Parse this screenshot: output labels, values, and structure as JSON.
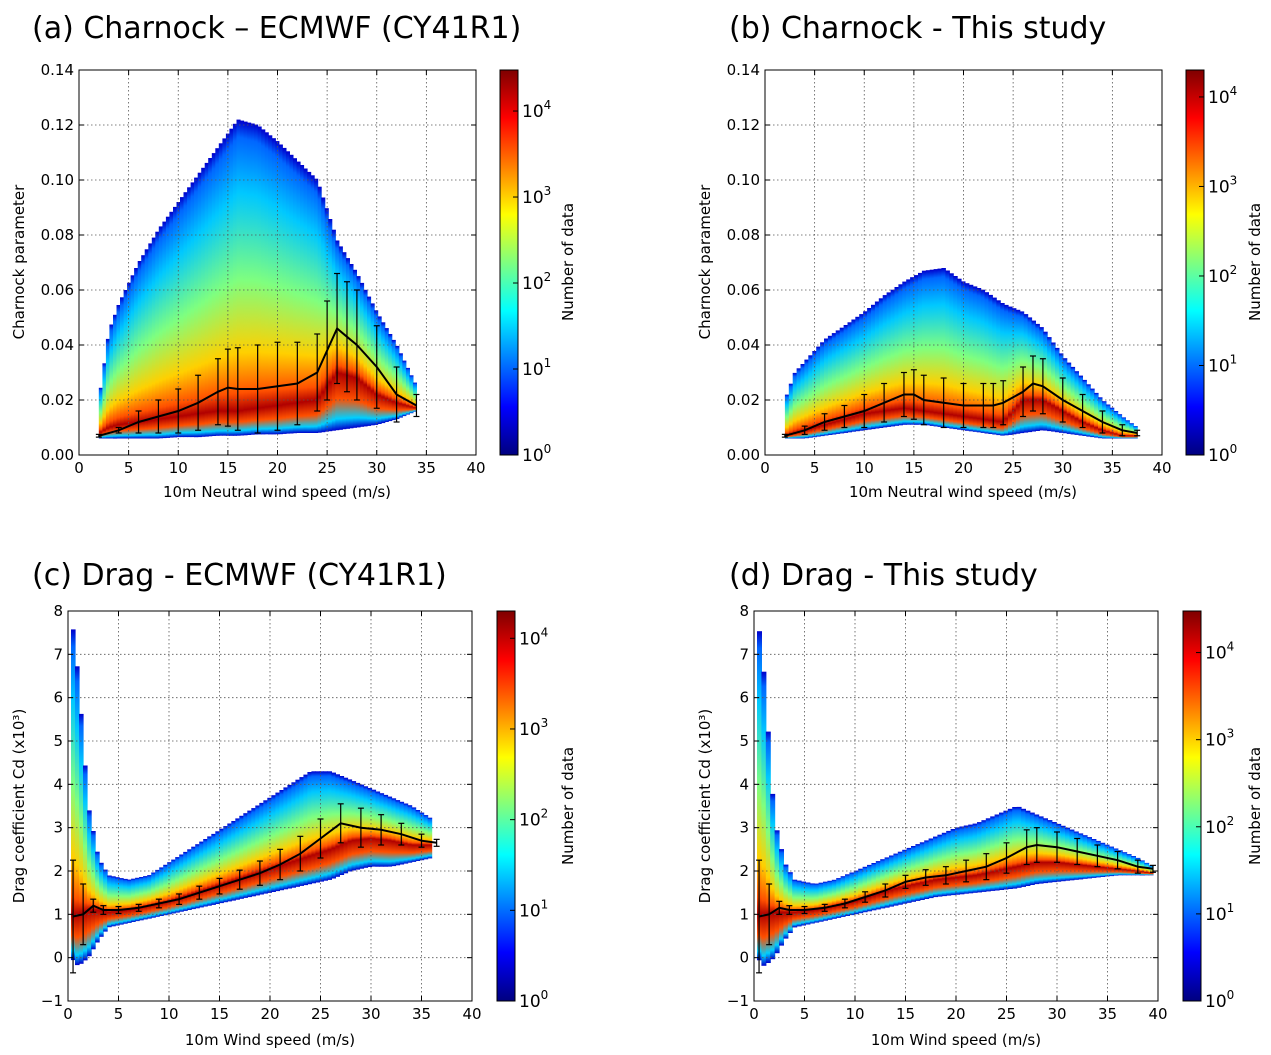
{
  "figure": {
    "colorbar_label": "Number of data"
  },
  "colormap": [
    "#00007f",
    "#0000ff",
    "#007fff",
    "#00ffff",
    "#7fff7f",
    "#ffff00",
    "#ff7f00",
    "#ff0000",
    "#7f0000"
  ],
  "chart_data": [
    {
      "id": "a",
      "type": "heatmap",
      "title": "(a) Charnock – ECMWF (CY41R1)",
      "xlabel": "10m Neutral wind speed (m/s)",
      "ylabel": "Charnock parameter",
      "xlim": [
        0,
        40
      ],
      "ylim": [
        0,
        0.14
      ],
      "xticks": [
        0,
        5,
        10,
        15,
        20,
        25,
        30,
        35,
        40
      ],
      "yticks": [
        0.0,
        0.02,
        0.04,
        0.06,
        0.08,
        0.1,
        0.12,
        0.14
      ],
      "ytick_labels": [
        "0.00",
        "0.02",
        "0.04",
        "0.06",
        "0.08",
        "0.10",
        "0.12",
        "0.14"
      ],
      "grid": true,
      "colorbar": {
        "scale": "log",
        "ticks": [
          "10^0",
          "10^1",
          "10^2",
          "10^3",
          "10^4"
        ],
        "max": 30000
      },
      "envelope": {
        "x": [
          2,
          3,
          4,
          6,
          8,
          10,
          12,
          14,
          16,
          18,
          20,
          22,
          24,
          26,
          28,
          30,
          32,
          34
        ],
        "upper": [
          0.02,
          0.045,
          0.055,
          0.07,
          0.082,
          0.092,
          0.102,
          0.112,
          0.122,
          0.12,
          0.114,
          0.107,
          0.1,
          0.078,
          0.066,
          0.052,
          0.04,
          0.025
        ],
        "lower": [
          0.006,
          0.006,
          0.006,
          0.006,
          0.006,
          0.0065,
          0.0065,
          0.007,
          0.007,
          0.0075,
          0.0075,
          0.008,
          0.008,
          0.009,
          0.01,
          0.011,
          0.013,
          0.016
        ],
        "ridge": [
          0.008,
          0.01,
          0.011,
          0.012,
          0.013,
          0.014,
          0.015,
          0.016,
          0.016,
          0.017,
          0.018,
          0.019,
          0.02,
          0.03,
          0.028,
          0.022,
          0.019,
          0.017
        ]
      },
      "mean_curve": {
        "x": [
          2,
          4,
          6,
          8,
          10,
          12,
          14,
          15,
          16,
          18,
          20,
          22,
          24,
          25,
          26,
          27,
          28,
          30,
          32,
          34
        ],
        "y": [
          0.007,
          0.009,
          0.012,
          0.014,
          0.016,
          0.019,
          0.023,
          0.0245,
          0.024,
          0.024,
          0.025,
          0.026,
          0.03,
          0.038,
          0.046,
          0.043,
          0.04,
          0.032,
          0.022,
          0.018
        ],
        "err": [
          0.0005,
          0.001,
          0.004,
          0.006,
          0.008,
          0.01,
          0.012,
          0.014,
          0.015,
          0.016,
          0.016,
          0.015,
          0.014,
          0.018,
          0.02,
          0.02,
          0.02,
          0.015,
          0.01,
          0.004
        ]
      }
    },
    {
      "id": "b",
      "type": "heatmap",
      "title": "(b) Charnock - This study",
      "xlabel": "10m Neutral wind speed (m/s)",
      "ylabel": "Charnock parameter",
      "xlim": [
        0,
        40
      ],
      "ylim": [
        0,
        0.14
      ],
      "xticks": [
        0,
        5,
        10,
        15,
        20,
        25,
        30,
        35,
        40
      ],
      "yticks": [
        0.0,
        0.02,
        0.04,
        0.06,
        0.08,
        0.1,
        0.12,
        0.14
      ],
      "ytick_labels": [
        "0.00",
        "0.02",
        "0.04",
        "0.06",
        "0.08",
        "0.10",
        "0.12",
        "0.14"
      ],
      "grid": true,
      "colorbar": {
        "scale": "log",
        "ticks": [
          "10^0",
          "10^1",
          "10^2",
          "10^3",
          "10^4"
        ],
        "max": 20000
      },
      "envelope": {
        "x": [
          2,
          3,
          4,
          6,
          8,
          10,
          12,
          14,
          16,
          18,
          20,
          22,
          24,
          26,
          28,
          30,
          32,
          34,
          36,
          37.5
        ],
        "upper": [
          0.02,
          0.03,
          0.034,
          0.042,
          0.047,
          0.052,
          0.058,
          0.063,
          0.067,
          0.068,
          0.063,
          0.06,
          0.055,
          0.052,
          0.046,
          0.036,
          0.028,
          0.02,
          0.014,
          0.01
        ],
        "lower": [
          0.006,
          0.006,
          0.006,
          0.007,
          0.008,
          0.009,
          0.01,
          0.011,
          0.011,
          0.01,
          0.009,
          0.008,
          0.007,
          0.008,
          0.009,
          0.008,
          0.007,
          0.006,
          0.006,
          0.006
        ],
        "ridge": [
          0.007,
          0.008,
          0.009,
          0.011,
          0.013,
          0.015,
          0.016,
          0.017,
          0.016,
          0.015,
          0.014,
          0.013,
          0.012,
          0.02,
          0.02,
          0.016,
          0.012,
          0.009,
          0.007,
          0.007
        ]
      },
      "mean_curve": {
        "x": [
          2,
          4,
          6,
          8,
          10,
          12,
          14,
          15,
          16,
          18,
          20,
          22,
          23,
          24,
          26,
          27,
          28,
          30,
          32,
          34,
          36,
          37.5
        ],
        "y": [
          0.007,
          0.009,
          0.012,
          0.014,
          0.016,
          0.019,
          0.022,
          0.022,
          0.02,
          0.019,
          0.018,
          0.018,
          0.018,
          0.019,
          0.023,
          0.026,
          0.025,
          0.02,
          0.016,
          0.012,
          0.009,
          0.008
        ],
        "err": [
          0.0005,
          0.0015,
          0.003,
          0.004,
          0.006,
          0.007,
          0.008,
          0.009,
          0.009,
          0.009,
          0.008,
          0.008,
          0.008,
          0.008,
          0.009,
          0.01,
          0.01,
          0.008,
          0.006,
          0.004,
          0.002,
          0.001
        ]
      }
    },
    {
      "id": "c",
      "type": "heatmap",
      "title": "(c) Drag  - ECMWF (CY41R1)",
      "xlabel": "10m Wind speed (m/s)",
      "ylabel": "Drag coefficient Cd (x10³)",
      "xlim": [
        0,
        40
      ],
      "ylim": [
        -1,
        8
      ],
      "xticks": [
        0,
        5,
        10,
        15,
        20,
        25,
        30,
        35,
        40
      ],
      "yticks": [
        -1,
        0,
        1,
        2,
        3,
        4,
        5,
        6,
        7,
        8
      ],
      "ytick_labels": [
        "−1",
        "0",
        "1",
        "2",
        "3",
        "4",
        "5",
        "6",
        "7",
        "8"
      ],
      "grid": true,
      "colorbar": {
        "scale": "log",
        "ticks": [
          "10^0",
          "10^1",
          "10^2",
          "10^3",
          "10^4"
        ],
        "max": 20000
      },
      "envelope": {
        "x": [
          0.3,
          1,
          2,
          3,
          4,
          6,
          8,
          10,
          12,
          14,
          16,
          18,
          20,
          22,
          24,
          26,
          28,
          30,
          32,
          34,
          36
        ],
        "upper": [
          8,
          6.5,
          3.5,
          2.3,
          1.9,
          1.8,
          1.9,
          2.2,
          2.5,
          2.8,
          3.1,
          3.4,
          3.7,
          4.0,
          4.3,
          4.3,
          4.1,
          3.9,
          3.7,
          3.5,
          3.2
        ],
        "lower": [
          0,
          -0.2,
          0.0,
          0.4,
          0.7,
          0.8,
          0.9,
          1.0,
          1.1,
          1.2,
          1.3,
          1.4,
          1.5,
          1.6,
          1.7,
          1.8,
          2.0,
          2.1,
          2.1,
          2.2,
          2.3
        ],
        "ridge": [
          1.0,
          1.0,
          1.1,
          1.1,
          1.05,
          1.1,
          1.2,
          1.3,
          1.45,
          1.6,
          1.75,
          1.9,
          2.05,
          2.2,
          2.35,
          2.5,
          2.7,
          2.75,
          2.7,
          2.6,
          2.6
        ]
      },
      "mean_curve": {
        "x": [
          0.5,
          1.5,
          2.5,
          3.5,
          5,
          7,
          9,
          11,
          13,
          15,
          17,
          19,
          21,
          23,
          25,
          27,
          29,
          31,
          33,
          35,
          36.5
        ],
        "y": [
          0.95,
          1.0,
          1.2,
          1.1,
          1.1,
          1.15,
          1.25,
          1.35,
          1.5,
          1.65,
          1.8,
          1.95,
          2.15,
          2.4,
          2.75,
          3.1,
          3.0,
          2.95,
          2.85,
          2.7,
          2.65
        ],
        "err": [
          1.3,
          0.7,
          0.15,
          0.1,
          0.08,
          0.08,
          0.1,
          0.12,
          0.15,
          0.18,
          0.22,
          0.28,
          0.35,
          0.4,
          0.45,
          0.45,
          0.45,
          0.35,
          0.25,
          0.15,
          0.08
        ]
      }
    },
    {
      "id": "d",
      "type": "heatmap",
      "title": "(d) Drag  - This study",
      "xlabel": "10m Wind speed (m/s)",
      "ylabel": "Drag coefficient Cd (x10³)",
      "xlim": [
        0,
        40
      ],
      "ylim": [
        -1,
        8
      ],
      "xticks": [
        0,
        5,
        10,
        15,
        20,
        25,
        30,
        35,
        40
      ],
      "yticks": [
        -1,
        0,
        1,
        2,
        3,
        4,
        5,
        6,
        7,
        8
      ],
      "ytick_labels": [
        "−1",
        "0",
        "1",
        "2",
        "3",
        "4",
        "5",
        "6",
        "7",
        "8"
      ],
      "grid": true,
      "colorbar": {
        "scale": "log",
        "ticks": [
          "10^0",
          "10^1",
          "10^2",
          "10^3",
          "10^4"
        ],
        "max": 30000
      },
      "envelope": {
        "x": [
          0.3,
          1,
          2,
          3,
          4,
          6,
          8,
          10,
          12,
          14,
          16,
          18,
          20,
          22,
          24,
          26,
          28,
          30,
          32,
          34,
          36,
          38,
          39.5
        ],
        "upper": [
          8,
          6.5,
          3.2,
          2.2,
          1.8,
          1.7,
          1.8,
          2.0,
          2.2,
          2.4,
          2.6,
          2.8,
          3.0,
          3.1,
          3.3,
          3.5,
          3.3,
          3.1,
          2.9,
          2.7,
          2.5,
          2.3,
          2.1
        ],
        "lower": [
          0,
          -0.2,
          0.0,
          0.4,
          0.7,
          0.8,
          0.9,
          1.0,
          1.1,
          1.2,
          1.3,
          1.4,
          1.45,
          1.5,
          1.55,
          1.6,
          1.7,
          1.75,
          1.8,
          1.85,
          1.9,
          1.9,
          1.9
        ],
        "ridge": [
          1.0,
          1.0,
          1.05,
          1.05,
          1.05,
          1.1,
          1.2,
          1.3,
          1.45,
          1.6,
          1.7,
          1.8,
          1.85,
          1.9,
          2.0,
          2.1,
          2.2,
          2.2,
          2.15,
          2.1,
          2.05,
          2.0,
          1.95
        ]
      },
      "mean_curve": {
        "x": [
          0.5,
          1.5,
          2.5,
          3.5,
          5,
          7,
          9,
          11,
          13,
          15,
          17,
          19,
          21,
          23,
          25,
          27,
          28,
          30,
          32,
          34,
          36,
          38,
          39.5
        ],
        "y": [
          0.95,
          1.0,
          1.15,
          1.1,
          1.1,
          1.15,
          1.25,
          1.4,
          1.55,
          1.75,
          1.85,
          1.9,
          2.0,
          2.1,
          2.3,
          2.55,
          2.6,
          2.55,
          2.45,
          2.35,
          2.25,
          2.1,
          2.05
        ],
        "err": [
          1.3,
          0.7,
          0.15,
          0.1,
          0.08,
          0.08,
          0.1,
          0.12,
          0.15,
          0.15,
          0.18,
          0.2,
          0.25,
          0.3,
          0.35,
          0.4,
          0.4,
          0.35,
          0.3,
          0.25,
          0.2,
          0.15,
          0.08
        ]
      }
    }
  ]
}
